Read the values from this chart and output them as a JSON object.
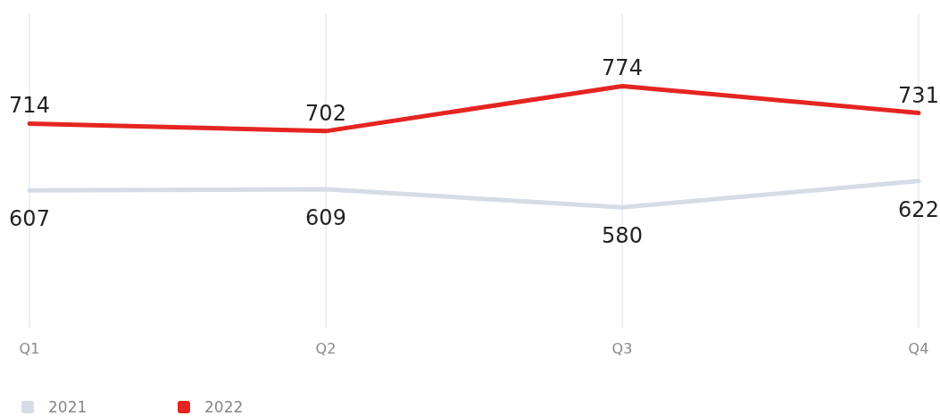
{
  "chart_data": {
    "type": "line",
    "categories": [
      "Q1",
      "Q2",
      "Q3",
      "Q4"
    ],
    "series": [
      {
        "name": "2021",
        "color": "#d5dce8",
        "values": [
          607,
          609,
          580,
          622
        ]
      },
      {
        "name": "2022",
        "color": "#e52521",
        "values": [
          714,
          702,
          774,
          731
        ]
      }
    ],
    "data_labels": true,
    "grid": "x",
    "legend": "bottom left",
    "tick_labels": "x"
  }
}
